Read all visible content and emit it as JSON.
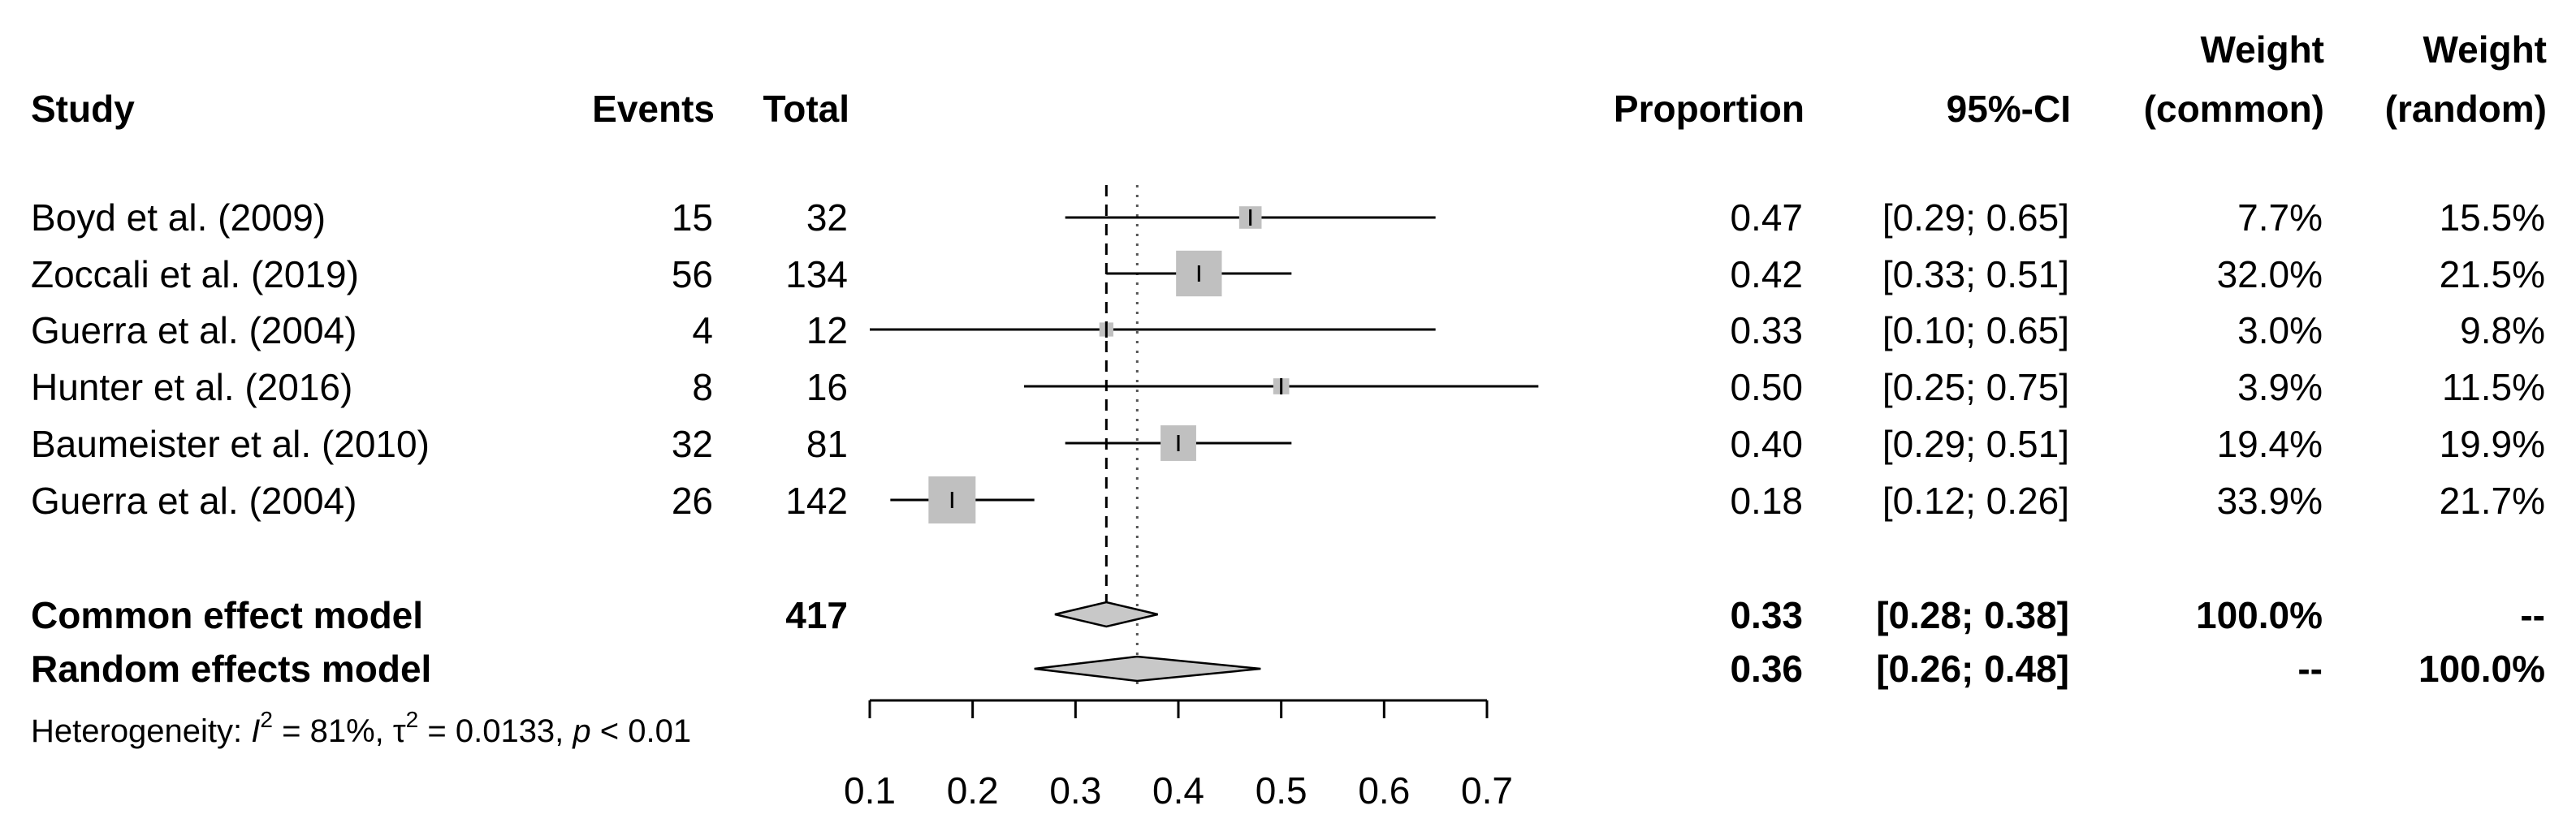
{
  "headers": {
    "study": "Study",
    "events": "Events",
    "total": "Total",
    "proportion": "Proportion",
    "ci": "95%-CI",
    "weight_common_1": "Weight",
    "weight_common_2": "(common)",
    "weight_random_1": "Weight",
    "weight_random_2": "(random)"
  },
  "studies": [
    {
      "study": "Boyd et al. (2009)",
      "events": "15",
      "total": "32",
      "proportion": "0.47",
      "ci": "[0.29; 0.65]",
      "weight_common": "7.7%",
      "weight_random": "15.5%"
    },
    {
      "study": "Zoccali et al. (2019)",
      "events": "56",
      "total": "134",
      "proportion": "0.42",
      "ci": "[0.33; 0.51]",
      "weight_common": "32.0%",
      "weight_random": "21.5%"
    },
    {
      "study": "Guerra et al. (2004)",
      "events": "4",
      "total": "12",
      "proportion": "0.33",
      "ci": "[0.10; 0.65]",
      "weight_common": "3.0%",
      "weight_random": "9.8%"
    },
    {
      "study": "Hunter et al. (2016)",
      "events": "8",
      "total": "16",
      "proportion": "0.50",
      "ci": "[0.25; 0.75]",
      "weight_common": "3.9%",
      "weight_random": "11.5%"
    },
    {
      "study": "Baumeister et al. (2010)",
      "events": "32",
      "total": "81",
      "proportion": "0.40",
      "ci": "[0.29; 0.51]",
      "weight_common": "19.4%",
      "weight_random": "19.9%"
    },
    {
      "study": "Guerra et al. (2004)",
      "events": "26",
      "total": "142",
      "proportion": "0.18",
      "ci": "[0.12; 0.26]",
      "weight_common": "33.9%",
      "weight_random": "21.7%"
    }
  ],
  "common_model": {
    "label": "Common effect model",
    "total": "417",
    "proportion": "0.33",
    "ci": "[0.28; 0.38]",
    "weight_common": "100.0%",
    "weight_random": "--"
  },
  "random_model": {
    "label": "Random effects model",
    "proportion": "0.36",
    "ci": "[0.26; 0.48]",
    "weight_common": "--",
    "weight_random": "100.0%"
  },
  "heterogeneity": {
    "prefix": "Heterogeneity: ",
    "i_sym": "I",
    "sup2": "2",
    "i_val": " = 81%, ",
    "tau_sym": "τ",
    "tau_val": " = 0.0133, ",
    "p_sym": "p",
    "p_val": " < 0.01"
  },
  "chart_data": {
    "type": "forest",
    "axis_ticks": [
      "0.1",
      "0.2",
      "0.3",
      "0.4",
      "0.5",
      "0.6",
      "0.7"
    ],
    "xlim": [
      0.1,
      0.7
    ],
    "studies": [
      {
        "est": 0.47,
        "lo": 0.29,
        "hi": 0.65,
        "w": 7.7
      },
      {
        "est": 0.42,
        "lo": 0.33,
        "hi": 0.51,
        "w": 32.0
      },
      {
        "est": 0.33,
        "lo": 0.1,
        "hi": 0.65,
        "w": 3.0
      },
      {
        "est": 0.5,
        "lo": 0.25,
        "hi": 0.75,
        "w": 3.9
      },
      {
        "est": 0.4,
        "lo": 0.29,
        "hi": 0.51,
        "w": 19.4
      },
      {
        "est": 0.18,
        "lo": 0.12,
        "hi": 0.26,
        "w": 33.9
      }
    ],
    "common": {
      "est": 0.33,
      "lo": 0.28,
      "hi": 0.38
    },
    "random": {
      "est": 0.36,
      "lo": 0.26,
      "hi": 0.48
    }
  }
}
